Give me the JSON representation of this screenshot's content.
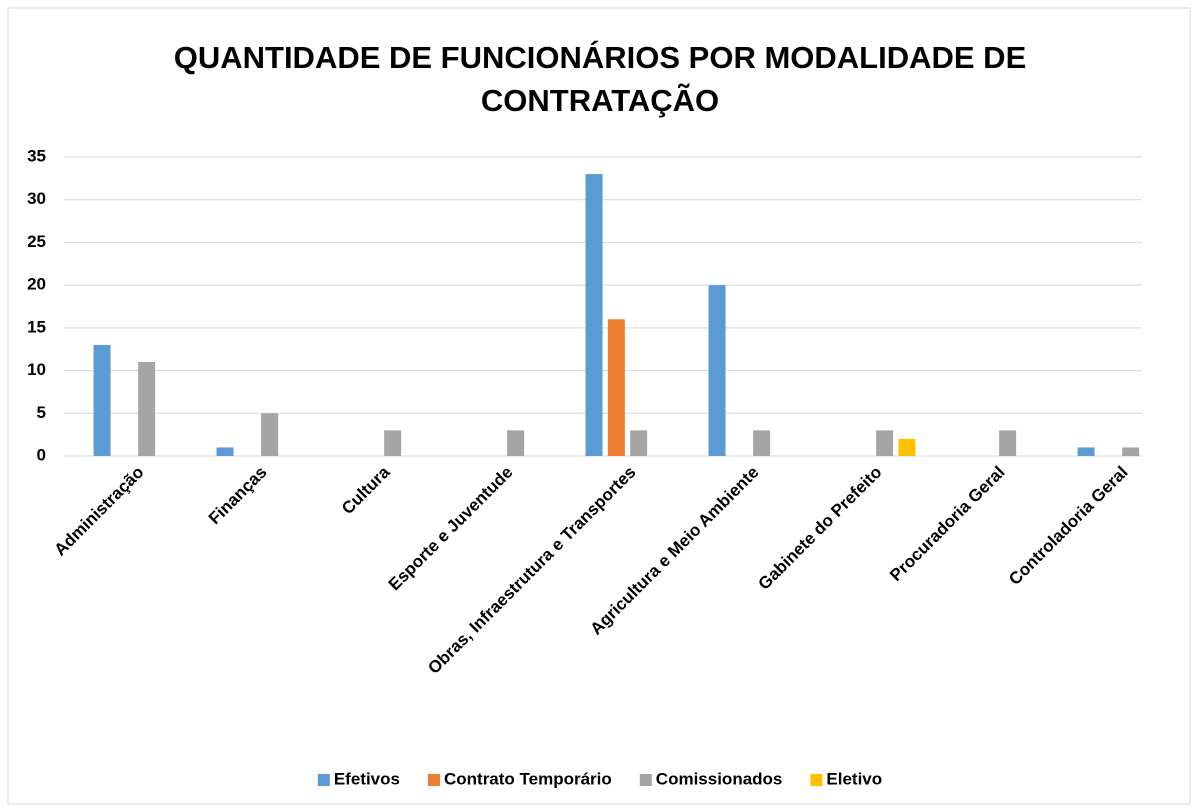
{
  "chart_data": {
    "type": "bar",
    "title": "QUANTIDADE DE FUNCIONÁRIOS POR MODALIDADE DE CONTRATAÇÃO",
    "categories": [
      "Administração",
      "Finanças",
      "Cultura",
      "Esporte e Juventude",
      "Obras, Infraestrutura e Transportes",
      "Agricultura e Meio Ambiente",
      "Gabinete do Prefeito",
      "Procuradoria Geral",
      "Controladoria Geral"
    ],
    "series": [
      {
        "name": "Efetivos",
        "color": "#5b9bd5",
        "values": [
          13,
          1,
          0,
          0,
          33,
          20,
          0,
          0,
          1
        ]
      },
      {
        "name": "Contrato Temporário",
        "color": "#ed7d31",
        "values": [
          0,
          0,
          0,
          0,
          16,
          0,
          0,
          0,
          0
        ]
      },
      {
        "name": "Comissionados",
        "color": "#a5a5a5",
        "values": [
          11,
          5,
          3,
          3,
          3,
          3,
          3,
          3,
          1
        ]
      },
      {
        "name": "Eletivo",
        "color": "#ffc000",
        "values": [
          0,
          0,
          0,
          0,
          0,
          0,
          2,
          0,
          0
        ]
      }
    ],
    "ylim": [
      0,
      35
    ],
    "yticks": [
      0,
      5,
      10,
      15,
      20,
      25,
      30,
      35
    ],
    "grid": true,
    "legend": "bottom"
  }
}
